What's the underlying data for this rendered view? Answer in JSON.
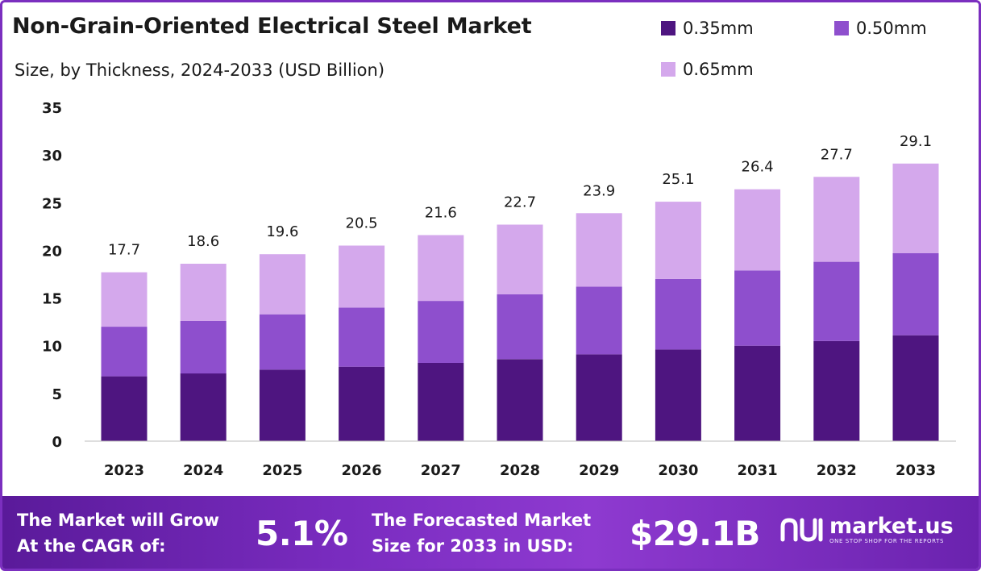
{
  "header": {
    "title": "Non-Grain-Oriented Electrical Steel Market",
    "subtitle": "Size, by Thickness, 2024-2033 (USD Billion)"
  },
  "colors": {
    "s035": "#4e1580",
    "s050": "#8e4fcd",
    "s065": "#d4a8ec",
    "footer": "#7a2cc0"
  },
  "chart_data": {
    "type": "bar",
    "stacked": true,
    "categories": [
      "2023",
      "2024",
      "2025",
      "2026",
      "2027",
      "2028",
      "2029",
      "2030",
      "2031",
      "2032",
      "2033"
    ],
    "series": [
      {
        "name": "0.35mm",
        "values": [
          6.8,
          7.1,
          7.5,
          7.8,
          8.2,
          8.6,
          9.1,
          9.6,
          10.0,
          10.5,
          11.1
        ]
      },
      {
        "name": "0.50mm",
        "values": [
          5.2,
          5.5,
          5.8,
          6.2,
          6.5,
          6.8,
          7.1,
          7.4,
          7.9,
          8.3,
          8.6
        ]
      },
      {
        "name": "0.65mm",
        "values": [
          5.7,
          6.0,
          6.3,
          6.5,
          6.9,
          7.3,
          7.7,
          8.1,
          8.5,
          8.9,
          9.4
        ]
      }
    ],
    "totals": [
      "17.7",
      "18.6",
      "19.6",
      "20.5",
      "21.6",
      "22.7",
      "23.9",
      "25.1",
      "26.4",
      "27.7",
      "29.1"
    ],
    "yticks": [
      "0",
      "5",
      "10",
      "15",
      "20",
      "25",
      "30",
      "35"
    ],
    "ylim": [
      0,
      35
    ],
    "grid": false,
    "legend_position": "top-right"
  },
  "footer": {
    "cagr_line1": "The Market will Grow",
    "cagr_line2": "At the CAGR of:",
    "cagr_value": "5.1%",
    "forecast_line1": "The Forecasted Market",
    "forecast_line2": "Size for 2033 in USD:",
    "forecast_value": "$29.1B",
    "brand_name": "market.us",
    "brand_tagline": "ONE STOP SHOP FOR THE REPORTS",
    "brand_icon": "market-us-logo-icon"
  }
}
